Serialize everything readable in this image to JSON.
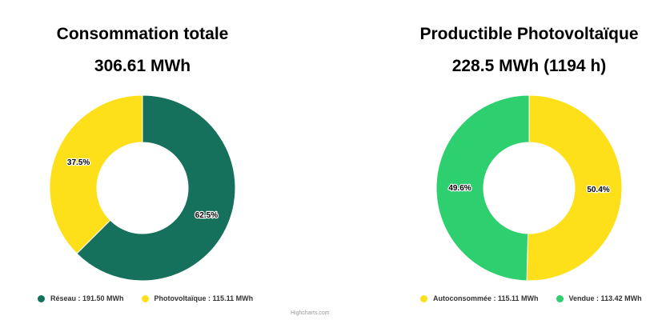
{
  "chart_data": [
    {
      "type": "pie",
      "title": "Consommation totale",
      "subtitle": "306.61 MWh",
      "categories": [
        "Réseau",
        "Photovoltaïque"
      ],
      "values": [
        62.5,
        37.5
      ],
      "legend": [
        "Réseau : 191.50 MWh",
        "Photovoltaïque : 115.11 MWh"
      ],
      "labels": [
        "62.5%",
        "37.5%"
      ],
      "colors": [
        "#15705c",
        "#fde01a"
      ],
      "legend_placement": "bottom"
    },
    {
      "type": "pie",
      "title": "Productible Photovoltaïque",
      "subtitle": "228.5 MWh (1194 h)",
      "categories": [
        "Autoconsommée",
        "Vendue"
      ],
      "values": [
        50.4,
        49.6
      ],
      "legend": [
        "Autoconsommée : 115.11 MWh",
        "Vendue : 113.42 MWh"
      ],
      "labels": [
        "50.4%",
        "49.6%"
      ],
      "colors": [
        "#fde01a",
        "#2ecf6e"
      ],
      "legend_placement": "bottom"
    }
  ],
  "credits": "Highcharts.com"
}
